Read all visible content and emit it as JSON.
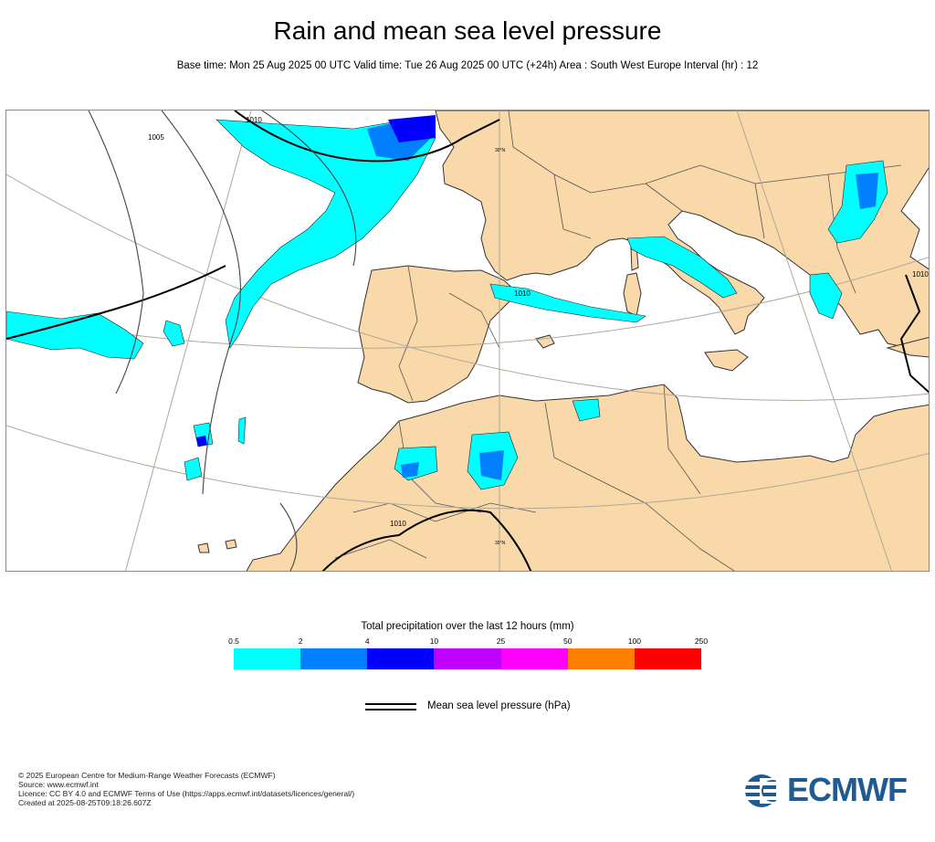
{
  "title": "Rain and mean sea level pressure",
  "subtitle": "Base time: Mon 25 Aug 2025 00 UTC Valid time: Tue 26 Aug 2025 00 UTC (+24h) Area : South West Europe Interval (hr) : 12",
  "map": {
    "land_color": "#f9d9a9",
    "sea_color": "#ffffff",
    "isobar_labels": [
      "1010",
      "1005",
      "1010",
      "1010",
      "1010"
    ],
    "grid_labels": [
      "30°N",
      "30°N"
    ]
  },
  "legend": {
    "title": "Total precipitation over the last 12 hours (mm)",
    "ticks": [
      "0.5",
      "2",
      "4",
      "10",
      "25",
      "50",
      "100",
      "250"
    ],
    "colors": [
      "#00ffff",
      "#0080ff",
      "#0000ff",
      "#c000ff",
      "#ff00ff",
      "#ff8000",
      "#ff0000"
    ],
    "mslp_label": "Mean sea level pressure (hPa)"
  },
  "footer": {
    "lines": [
      "© 2025 European Centre for Medium-Range Weather Forecasts (ECMWF)",
      "Source: www.ecmwf.int",
      "Licence: CC BY 4.0 and ECMWF Terms of Use (https://apps.ecmwf.int/datasets/licences/general/)",
      "Created at 2025-08-25T09:18:26.607Z"
    ],
    "logo_text": "ECMWF"
  }
}
